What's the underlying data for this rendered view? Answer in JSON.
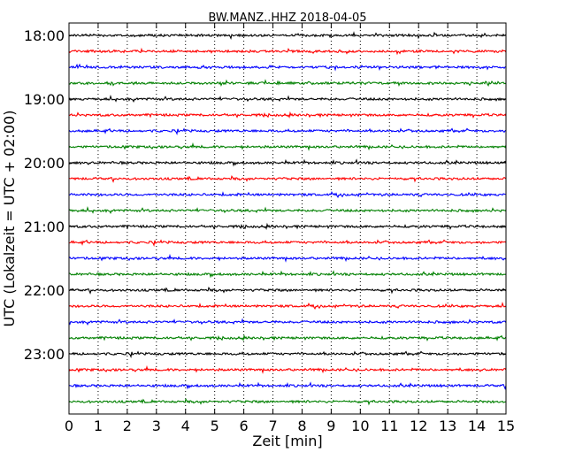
{
  "chart_data": {
    "type": "line",
    "title": "BW.MANZ..HHZ 2018-04-05",
    "xlabel": "Zeit  [min]",
    "ylabel": "UTC (Lokalzeit = UTC + 02:00)",
    "xlim": [
      0,
      15
    ],
    "x_ticks": [
      "0",
      "1",
      "2",
      "3",
      "4",
      "5",
      "6",
      "7",
      "8",
      "9",
      "10",
      "11",
      "12",
      "13",
      "14",
      "15"
    ],
    "y_ticks": [
      "18:00",
      "19:00",
      "20:00",
      "21:00",
      "22:00",
      "23:00"
    ],
    "grid": "vertical dotted",
    "trace_interval_minutes": 15,
    "trace_colors": [
      "#000000",
      "#ff0000",
      "#0000ff",
      "#008000"
    ],
    "traces": [
      {
        "start": "18:00",
        "color": "#000000"
      },
      {
        "start": "18:15",
        "color": "#ff0000"
      },
      {
        "start": "18:30",
        "color": "#0000ff"
      },
      {
        "start": "18:45",
        "color": "#008000"
      },
      {
        "start": "19:00",
        "color": "#000000"
      },
      {
        "start": "19:15",
        "color": "#ff0000"
      },
      {
        "start": "19:30",
        "color": "#0000ff"
      },
      {
        "start": "19:45",
        "color": "#008000"
      },
      {
        "start": "20:00",
        "color": "#000000"
      },
      {
        "start": "20:15",
        "color": "#ff0000"
      },
      {
        "start": "20:30",
        "color": "#0000ff"
      },
      {
        "start": "20:45",
        "color": "#008000"
      },
      {
        "start": "21:00",
        "color": "#000000"
      },
      {
        "start": "21:15",
        "color": "#ff0000"
      },
      {
        "start": "21:30",
        "color": "#0000ff"
      },
      {
        "start": "21:45",
        "color": "#008000"
      },
      {
        "start": "22:00",
        "color": "#000000"
      },
      {
        "start": "22:15",
        "color": "#ff0000"
      },
      {
        "start": "22:30",
        "color": "#0000ff"
      },
      {
        "start": "22:45",
        "color": "#008000"
      },
      {
        "start": "23:00",
        "color": "#000000"
      },
      {
        "start": "23:15",
        "color": "#ff0000"
      },
      {
        "start": "23:30",
        "color": "#0000ff"
      },
      {
        "start": "23:45",
        "color": "#008000"
      }
    ]
  }
}
